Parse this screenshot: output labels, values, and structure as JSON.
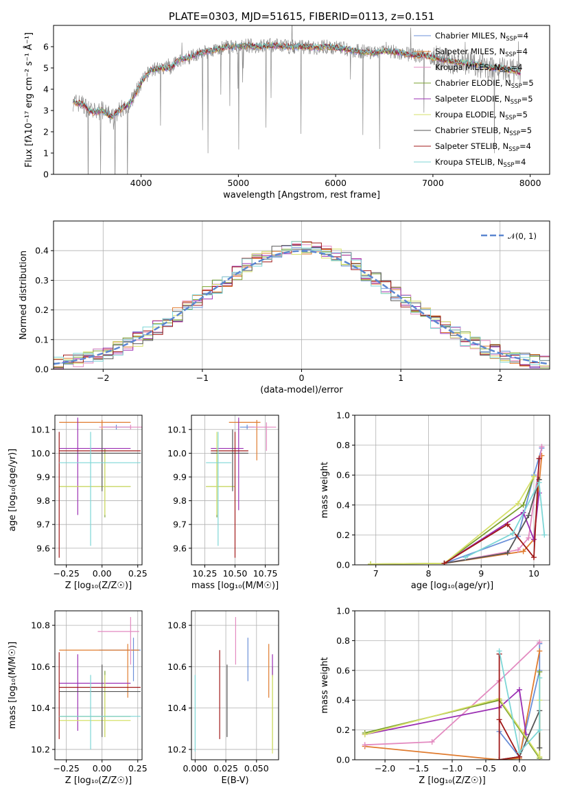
{
  "colors": {
    "cm": "#6a8fd8",
    "sm": "#e07b2e",
    "km": "#e38ac0",
    "ce": "#7aa02e",
    "se": "#9b2fb3",
    "ke": "#d6e06a",
    "cs": "#555555",
    "ss": "#a01818",
    "ks": "#7dd6d6",
    "obs": "#8a8a8a",
    "normal": "#5b86d0"
  },
  "chart_data": [
    {
      "id": "spectrum",
      "type": "line",
      "title": "PLATE=0303, MJD=51615, FIBERID=0113, z=0.151",
      "xlabel": "wavelength [Angstrom, rest frame]",
      "ylabel": "Flux [fλ10⁻¹⁷ erg cm⁻² s⁻¹ Å⁻¹]",
      "xlim": [
        3100,
        8200
      ],
      "ylim": [
        0,
        7
      ],
      "xticks": [
        "4000",
        "5000",
        "6000",
        "7000",
        "8000"
      ],
      "yticks": [
        "0",
        "1",
        "2",
        "3",
        "4",
        "5",
        "6"
      ],
      "legend": [
        {
          "name": "Chabrier MILES, N",
          "sub": "SSP",
          "eq": "=4",
          "color": "cm"
        },
        {
          "name": "Salpeter MILES, N",
          "sub": "SSP",
          "eq": "=4",
          "color": "sm"
        },
        {
          "name": "Kroupa MILES, N",
          "sub": "SSP",
          "eq": "=4",
          "color": "km"
        },
        {
          "name": "Chabrier ELODIE, N",
          "sub": "SSP",
          "eq": "=5",
          "color": "ce"
        },
        {
          "name": "Salpeter ELODIE, N",
          "sub": "SSP",
          "eq": "=5",
          "color": "se"
        },
        {
          "name": "Kroupa ELODIE, N",
          "sub": "SSP",
          "eq": "=5",
          "color": "ke"
        },
        {
          "name": "Chabrier STELIB, N",
          "sub": "SSP",
          "eq": "=5",
          "color": "cs"
        },
        {
          "name": "Salpeter STELIB, N",
          "sub": "SSP",
          "eq": "=4",
          "color": "ss"
        },
        {
          "name": "Kroupa STELIB, N",
          "sub": "SSP",
          "eq": "=4",
          "color": "ks"
        }
      ],
      "continuum": [
        [
          3300,
          3.4
        ],
        [
          3400,
          3.3
        ],
        [
          3500,
          2.9
        ],
        [
          3600,
          3.0
        ],
        [
          3700,
          2.7
        ],
        [
          3800,
          3.1
        ],
        [
          3900,
          3.4
        ],
        [
          4000,
          4.3
        ],
        [
          4100,
          4.9
        ],
        [
          4200,
          5.0
        ],
        [
          4300,
          5.0
        ],
        [
          4400,
          5.4
        ],
        [
          4500,
          5.5
        ],
        [
          4600,
          5.7
        ],
        [
          4700,
          5.8
        ],
        [
          4800,
          5.9
        ],
        [
          4900,
          6.0
        ],
        [
          5000,
          6.0
        ],
        [
          5100,
          6.05
        ],
        [
          5200,
          6.0
        ],
        [
          5300,
          6.05
        ],
        [
          5400,
          6.05
        ],
        [
          5500,
          6.0
        ],
        [
          5600,
          6.0
        ],
        [
          5700,
          6.0
        ],
        [
          5800,
          5.95
        ],
        [
          5900,
          6.0
        ],
        [
          6000,
          5.95
        ],
        [
          6100,
          5.9
        ],
        [
          6200,
          5.8
        ],
        [
          6300,
          5.75
        ],
        [
          6400,
          5.7
        ],
        [
          6500,
          5.8
        ],
        [
          6600,
          5.75
        ],
        [
          6700,
          5.7
        ],
        [
          6800,
          5.6
        ],
        [
          6900,
          5.6
        ],
        [
          7000,
          5.5
        ],
        [
          7100,
          5.4
        ],
        [
          7200,
          5.3
        ],
        [
          7300,
          5.25
        ],
        [
          7400,
          5.2
        ],
        [
          7500,
          5.1
        ],
        [
          7600,
          5.0
        ],
        [
          7700,
          5.0
        ],
        [
          7800,
          4.9
        ],
        [
          7900,
          4.8
        ]
      ]
    },
    {
      "id": "residuals",
      "type": "bar",
      "xlabel": "(data-model)/error",
      "ylabel": "Normed distribution",
      "xlim": [
        -2.5,
        2.5
      ],
      "ylim": [
        0,
        0.5
      ],
      "xticks": [
        "−2",
        "−1",
        "0",
        "1",
        "2"
      ],
      "yticks": [
        "0.0",
        "0.1",
        "0.2",
        "0.3",
        "0.4"
      ],
      "legend": [
        {
          "name": "𝒩(0, 1)",
          "color": "normal"
        }
      ]
    },
    {
      "id": "age-vs-z",
      "type": "scatter",
      "xlabel": "Z [log₁₀(Z/Z☉)]",
      "ylabel": "age  [log₁₀(age/yr)]",
      "xlim": [
        -0.33,
        0.28
      ],
      "ylim": [
        9.53,
        10.16
      ],
      "xticks": [
        "−0.25",
        "0.00",
        "0.25"
      ],
      "yticks": [
        "9.6",
        "9.7",
        "9.8",
        "9.9",
        "10.0",
        "10.1"
      ],
      "points": [
        {
          "c": "cm",
          "x": 0.1,
          "xlo": -0.0,
          "xhi": 0.2,
          "y": 10.11,
          "ylo": 10.1,
          "yhi": 10.12
        },
        {
          "c": "sm",
          "x": 0.0,
          "xlo": -0.3,
          "xhi": 0.2,
          "y": 10.13,
          "ylo": 10.1,
          "yhi": 10.14
        },
        {
          "c": "km",
          "x": 0.2,
          "xlo": -0.02,
          "xhi": 0.28,
          "y": 10.11,
          "ylo": 10.1,
          "yhi": 10.12
        },
        {
          "c": "ce",
          "x": 0.02,
          "xlo": -0.3,
          "xhi": 0.2,
          "y": 9.86,
          "ylo": 9.73,
          "yhi": 10.02
        },
        {
          "c": "se",
          "x": -0.17,
          "xlo": -0.3,
          "xhi": 0.2,
          "y": 10.02,
          "ylo": 9.74,
          "yhi": 10.15
        },
        {
          "c": "ke",
          "x": 0.02,
          "xlo": -0.3,
          "xhi": 0.2,
          "y": 9.86,
          "ylo": 9.74,
          "yhi": 10.0
        },
        {
          "c": "cs",
          "x": 0.0,
          "xlo": -0.3,
          "xhi": 0.27,
          "y": 10.0,
          "ylo": 9.84,
          "yhi": 10.1
        },
        {
          "c": "ss",
          "x": -0.3,
          "xlo": -0.3,
          "xhi": 0.27,
          "y": 10.01,
          "ylo": 9.56,
          "yhi": 10.09
        },
        {
          "c": "ks",
          "x": -0.08,
          "xlo": -0.3,
          "xhi": 0.27,
          "y": 9.96,
          "ylo": 9.61,
          "yhi": 10.09
        }
      ]
    },
    {
      "id": "age-vs-mass",
      "type": "scatter",
      "xlabel": "mass [log₁₀(M/M☉)]",
      "ylabel": "",
      "xlim": [
        10.14,
        10.86
      ],
      "ylim": [
        9.53,
        10.16
      ],
      "xticks": [
        "10.25",
        "10.50",
        "10.75"
      ],
      "yticks": [
        "9.6",
        "9.7",
        "9.8",
        "9.9",
        "10.0",
        "10.1"
      ],
      "points": [
        {
          "c": "cm",
          "x": 10.6,
          "xlo": 10.54,
          "xhi": 10.66,
          "y": 10.11,
          "ylo": 10.1,
          "yhi": 10.12
        },
        {
          "c": "sm",
          "x": 10.68,
          "xlo": 10.45,
          "xhi": 10.71,
          "y": 10.13,
          "ylo": 9.97,
          "yhi": 10.14
        },
        {
          "c": "km",
          "x": 10.76,
          "xlo": 10.61,
          "xhi": 10.84,
          "y": 10.11,
          "ylo": 10.01,
          "yhi": 10.13
        },
        {
          "c": "ce",
          "x": 10.35,
          "xlo": 10.26,
          "xhi": 10.5,
          "y": 9.86,
          "ylo": 9.73,
          "yhi": 10.02
        },
        {
          "c": "se",
          "x": 10.53,
          "xlo": 10.3,
          "xhi": 10.57,
          "y": 10.02,
          "ylo": 9.76,
          "yhi": 10.15
        },
        {
          "c": "ke",
          "x": 10.35,
          "xlo": 10.26,
          "xhi": 10.5,
          "y": 9.86,
          "ylo": 9.74,
          "yhi": 10.09
        },
        {
          "c": "cs",
          "x": 10.48,
          "xlo": 10.3,
          "xhi": 10.61,
          "y": 10.0,
          "ylo": 9.84,
          "yhi": 10.1
        },
        {
          "c": "ss",
          "x": 10.5,
          "xlo": 10.3,
          "xhi": 10.61,
          "y": 10.01,
          "ylo": 9.56,
          "yhi": 10.09
        },
        {
          "c": "ks",
          "x": 10.36,
          "xlo": 10.26,
          "xhi": 10.47,
          "y": 9.96,
          "ylo": 9.61,
          "yhi": 10.09
        }
      ]
    },
    {
      "id": "weight-vs-age",
      "type": "line",
      "xlabel": "age  [log₁₀(age/yr)]",
      "ylabel": "mass weight",
      "xlim": [
        6.6,
        10.3
      ],
      "ylim": [
        0,
        1
      ],
      "xticks": [
        "7",
        "8",
        "9",
        "10"
      ],
      "yticks": [
        "0.0",
        "0.2",
        "0.4",
        "0.6",
        "0.8",
        "1.0"
      ],
      "series": [
        {
          "c": "cm",
          "x": [
            8.3,
            9.7,
            10.0,
            10.15
          ],
          "y": [
            0.01,
            0.19,
            0.6,
            0.78
          ]
        },
        {
          "c": "sm",
          "x": [
            8.3,
            9.8,
            10.0,
            10.15
          ],
          "y": [
            0.01,
            0.09,
            0.17,
            0.73
          ]
        },
        {
          "c": "km",
          "x": [
            8.3,
            9.7,
            9.9,
            10.15
          ],
          "y": [
            0.01,
            0.1,
            0.18,
            0.79
          ]
        },
        {
          "c": "ce",
          "x": [
            6.9,
            8.3,
            9.8,
            10.0
          ],
          "y": [
            0.005,
            0.01,
            0.4,
            0.59
          ]
        },
        {
          "c": "se",
          "x": [
            8.3,
            9.8,
            10.0,
            10.1
          ],
          "y": [
            0.01,
            0.35,
            0.17,
            0.48
          ]
        },
        {
          "c": "ke",
          "x": [
            6.9,
            8.3,
            9.7,
            10.0
          ],
          "y": [
            0.005,
            0.01,
            0.41,
            0.59
          ]
        },
        {
          "c": "cs",
          "x": [
            8.3,
            9.5,
            9.9,
            10.1
          ],
          "y": [
            0.01,
            0.08,
            0.33,
            0.57
          ]
        },
        {
          "c": "ss",
          "x": [
            8.3,
            9.5,
            10.0,
            10.1
          ],
          "y": [
            0.01,
            0.27,
            0.05,
            0.71
          ]
        },
        {
          "c": "ks",
          "x": [
            8.7,
            9.6,
            10.1,
            10.2
          ],
          "y": [
            0.05,
            0.21,
            0.55,
            0.2
          ]
        }
      ]
    },
    {
      "id": "mass-vs-z",
      "type": "scatter",
      "xlabel": "Z [log₁₀(Z/Z☉)]",
      "ylabel": "mass [log₁₀(M/M☉)]",
      "xlim": [
        -0.33,
        0.28
      ],
      "ylim": [
        10.15,
        10.87
      ],
      "xticks": [
        "−0.25",
        "0.00",
        "0.25"
      ],
      "yticks": [
        "10.2",
        "10.4",
        "10.6",
        "10.8"
      ],
      "points": [
        {
          "c": "cm",
          "x": 0.22,
          "xlo": -0.02,
          "xhi": 0.27,
          "y": 10.68,
          "ylo": 10.53,
          "yhi": 10.74
        },
        {
          "c": "sm",
          "x": 0.18,
          "xlo": -0.3,
          "xhi": 0.26,
          "y": 10.68,
          "ylo": 10.45,
          "yhi": 10.71
        },
        {
          "c": "km",
          "x": 0.2,
          "xlo": -0.03,
          "xhi": 0.26,
          "y": 10.77,
          "ylo": 10.61,
          "yhi": 10.84
        },
        {
          "c": "ce",
          "x": 0.02,
          "xlo": -0.3,
          "xhi": 0.2,
          "y": 10.36,
          "ylo": 10.26,
          "yhi": 10.58
        },
        {
          "c": "se",
          "x": -0.17,
          "xlo": -0.3,
          "xhi": 0.2,
          "y": 10.52,
          "ylo": 10.29,
          "yhi": 10.66
        },
        {
          "c": "ke",
          "x": 0.02,
          "xlo": -0.3,
          "xhi": 0.2,
          "y": 10.34,
          "ylo": 10.26,
          "yhi": 10.56
        },
        {
          "c": "cs",
          "x": 0.0,
          "xlo": -0.3,
          "xhi": 0.27,
          "y": 10.48,
          "ylo": 10.26,
          "yhi": 10.61
        },
        {
          "c": "ss",
          "x": -0.3,
          "xlo": -0.3,
          "xhi": 0.27,
          "y": 10.5,
          "ylo": 10.25,
          "yhi": 10.67
        },
        {
          "c": "ks",
          "x": -0.08,
          "xlo": -0.3,
          "xhi": 0.27,
          "y": 10.36,
          "ylo": 10.2,
          "yhi": 10.56
        }
      ]
    },
    {
      "id": "mass-vs-ebv",
      "type": "scatter",
      "xlabel": "E(B-V)",
      "ylabel": "",
      "xlim": [
        -0.003,
        0.068
      ],
      "ylim": [
        10.15,
        10.87
      ],
      "xticks": [
        "0.000",
        "0.025",
        "0.050"
      ],
      "yticks": [
        "10.2",
        "10.4",
        "10.6",
        "10.8"
      ],
      "points": [
        {
          "c": "cm",
          "x": 0.043,
          "y": 10.64,
          "ylo": 10.53,
          "yhi": 10.74
        },
        {
          "c": "sm",
          "x": 0.06,
          "y": 10.6,
          "ylo": 10.45,
          "yhi": 10.71
        },
        {
          "c": "km",
          "x": 0.033,
          "y": 10.72,
          "ylo": 10.61,
          "yhi": 10.84
        },
        {
          "c": "ce",
          "x": 0.063,
          "y": 10.4,
          "ylo": 10.2,
          "yhi": 10.6
        },
        {
          "c": "se",
          "x": 0.063,
          "y": 10.6,
          "ylo": 10.55,
          "yhi": 10.66
        },
        {
          "c": "ke",
          "x": 0.063,
          "y": 10.3,
          "ylo": 10.18,
          "yhi": 10.56
        },
        {
          "c": "cs",
          "x": 0.026,
          "y": 10.45,
          "ylo": 10.26,
          "yhi": 10.61
        },
        {
          "c": "ss",
          "x": 0.02,
          "y": 10.5,
          "ylo": 10.25,
          "yhi": 10.68
        },
        {
          "c": "ks",
          "x": 0.0,
          "y": 10.4,
          "ylo": 10.19,
          "yhi": 10.56
        }
      ]
    },
    {
      "id": "weight-vs-z",
      "type": "line",
      "xlabel": "Z [log₁₀(Z/Z☉)]",
      "ylabel": "mass weight",
      "xlim": [
        -2.45,
        0.45
      ],
      "ylim": [
        0,
        1
      ],
      "xticks": [
        "−2.0",
        "−1.5",
        "−1.0",
        "−0.5",
        "0.0"
      ],
      "yticks": [
        "0.0",
        "0.2",
        "0.4",
        "0.6",
        "0.8",
        "1.0"
      ],
      "series": [
        {
          "c": "cm",
          "x": [
            -0.3,
            0.0,
            0.3,
            0.3
          ],
          "y": [
            0.19,
            0.02,
            0.6,
            0.78
          ]
        },
        {
          "c": "sm",
          "x": [
            -2.3,
            -0.3,
            0.0,
            0.3
          ],
          "y": [
            0.09,
            0.0,
            0.01,
            0.73
          ]
        },
        {
          "c": "km",
          "x": [
            -2.3,
            -1.3,
            -0.3,
            0.3
          ],
          "y": [
            0.1,
            0.12,
            0.53,
            0.79
          ]
        },
        {
          "c": "ce",
          "x": [
            -2.3,
            -0.3,
            0.3,
            0.3
          ],
          "y": [
            0.18,
            0.4,
            0.01,
            0.59
          ]
        },
        {
          "c": "se",
          "x": [
            -2.3,
            -0.3,
            0.0,
            0.1
          ],
          "y": [
            0.17,
            0.35,
            0.47,
            0.17
          ]
        },
        {
          "c": "ke",
          "x": [
            -2.3,
            -0.3,
            0.3,
            0.3
          ],
          "y": [
            0.17,
            0.41,
            0.02,
            0.4
          ]
        },
        {
          "c": "cs",
          "x": [
            -0.3,
            0.0,
            0.3,
            0.3
          ],
          "y": [
            0.0,
            0.02,
            0.33,
            0.08
          ]
        },
        {
          "c": "ss",
          "x": [
            -0.3,
            -0.3,
            0.0,
            -0.3
          ],
          "y": [
            0.71,
            0.0,
            0.02,
            0.27
          ]
        },
        {
          "c": "ks",
          "x": [
            -0.3,
            0.0,
            0.3,
            0.3
          ],
          "y": [
            0.73,
            0.05,
            0.2,
            0.55
          ]
        }
      ]
    }
  ]
}
